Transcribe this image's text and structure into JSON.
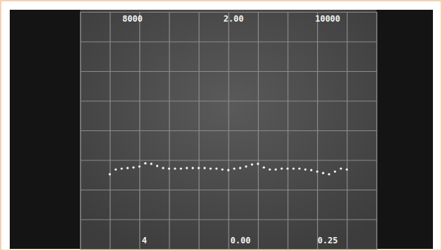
{
  "chart_data": {
    "type": "scatter",
    "annotations": [
      {
        "text": "8000"
      },
      {
        "text": "2.00"
      },
      {
        "text": "10000"
      },
      {
        "text": "4"
      },
      {
        "text": "0.00"
      },
      {
        "text": "0.25"
      }
    ],
    "x": [
      8200,
      8240,
      8280,
      8320,
      8360,
      8400,
      8440,
      8480,
      8520,
      8560,
      8600,
      8640,
      8680,
      8720,
      8760,
      8800,
      8840,
      8880,
      8920,
      8960,
      9000,
      9040,
      9080,
      9120,
      9160,
      9200,
      9240,
      9280,
      9320,
      9360,
      9400,
      9440,
      9480,
      9520,
      9560,
      9600,
      9640,
      9680,
      9720,
      9760,
      9800
    ],
    "values": [
      2.52,
      2.68,
      2.71,
      2.73,
      2.75,
      2.78,
      2.89,
      2.87,
      2.8,
      2.73,
      2.71,
      2.71,
      2.71,
      2.73,
      2.73,
      2.73,
      2.73,
      2.71,
      2.71,
      2.68,
      2.66,
      2.71,
      2.73,
      2.78,
      2.85,
      2.87,
      2.75,
      2.68,
      2.68,
      2.71,
      2.71,
      2.71,
      2.71,
      2.68,
      2.66,
      2.61,
      2.56,
      2.52,
      2.61,
      2.71,
      2.68
    ],
    "color": "#f2f2f2",
    "marker": "circle",
    "line_style": "none",
    "xlim": [
      8000,
      10000
    ],
    "xticks": [
      8000,
      8200,
      8400,
      8600,
      8800,
      9000,
      9200,
      9400,
      9600,
      9800,
      10000
    ],
    "ylim": [
      0,
      8
    ],
    "yticks": [
      0,
      1,
      2,
      3,
      4,
      5,
      6,
      7,
      8
    ],
    "grid": true,
    "tick_labels": false
  }
}
